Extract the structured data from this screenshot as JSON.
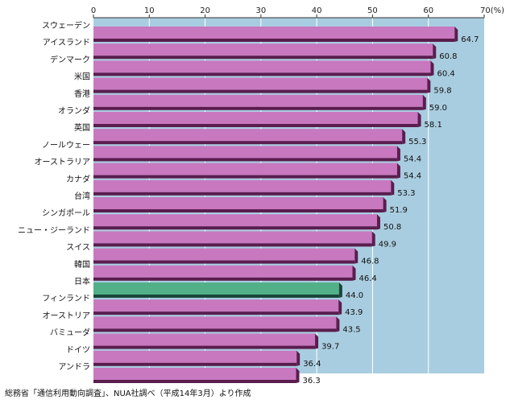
{
  "chart_data": {
    "type": "bar",
    "orientation": "horizontal",
    "categories": [
      "スウェーデン",
      "アイスランド",
      "デンマーク",
      "米国",
      "香港",
      "オランダ",
      "英国",
      "ノールウェー",
      "オーストラリア",
      "カナダ",
      "台湾",
      "シンガポール",
      "ニュー・ジーランド",
      "スイス",
      "韓国",
      "日本",
      "フィンランド",
      "オーストリア",
      "バミューダ",
      "ドイツ",
      "アンドラ"
    ],
    "values": [
      64.7,
      60.8,
      60.4,
      59.8,
      59.0,
      58.1,
      55.3,
      54.4,
      54.4,
      53.3,
      51.9,
      50.8,
      49.9,
      46.8,
      46.4,
      44.0,
      43.9,
      43.5,
      39.7,
      36.4,
      36.3
    ],
    "value_labels": [
      "64.7",
      "60.8",
      "60.4",
      "59.8",
      "59.0",
      "58.1",
      "55.3",
      "54.4",
      "54.4",
      "53.3",
      "51.9",
      "50.8",
      "49.9",
      "46.8",
      "46.4",
      "44.0",
      "43.9",
      "43.5",
      "39.7",
      "36.4",
      "36.3"
    ],
    "highlight": "日本",
    "xlim": [
      0,
      70
    ],
    "xticks": [
      0,
      10,
      20,
      30,
      40,
      50,
      60,
      70
    ],
    "xtick_labels": [
      "0",
      "10",
      "20",
      "30",
      "40",
      "50",
      "60",
      "70(%)"
    ],
    "axis_position": "top",
    "grid": true,
    "colors": {
      "background": "#a9cde0",
      "bar": "#c878bf",
      "bar_shadow": "#5a1d4e",
      "highlight_bar": "#52b088",
      "highlight_shadow": "#17473a",
      "grid": "#ffffff"
    }
  },
  "source_note": "総務省「通信利用動向調査」、NUA社調べ（平成14年3月）より作成"
}
